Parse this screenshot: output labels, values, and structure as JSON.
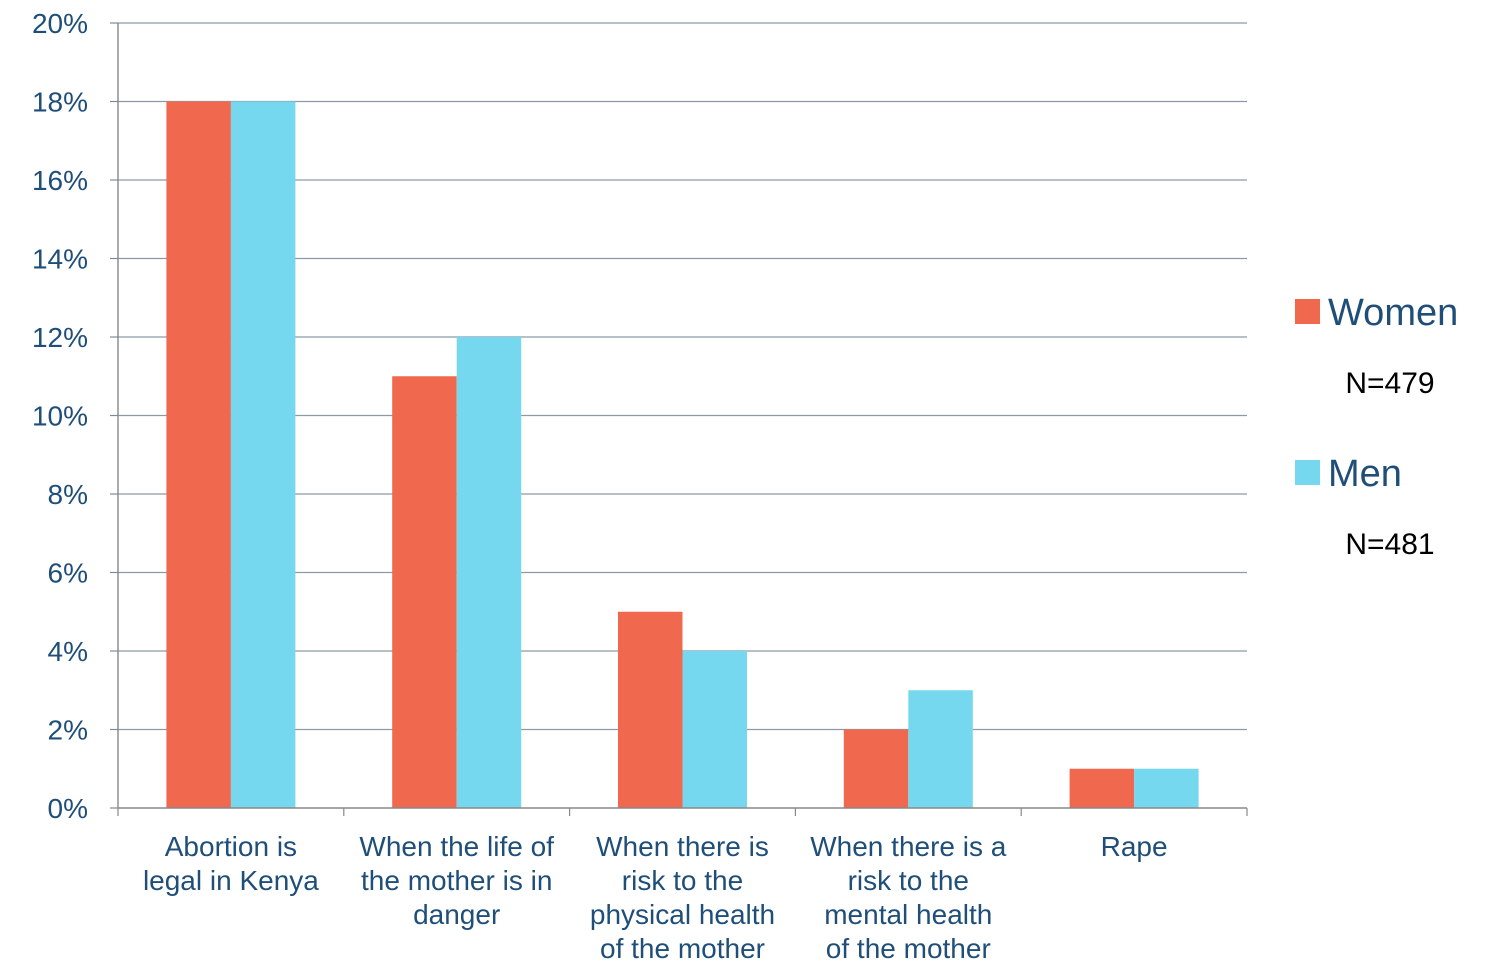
{
  "chart_data": {
    "type": "bar",
    "title": "",
    "xlabel": "",
    "ylabel": "",
    "ylim": [
      0,
      20
    ],
    "y_ticks": [
      "0%",
      "2%",
      "4%",
      "6%",
      "8%",
      "10%",
      "12%",
      "14%",
      "16%",
      "18%",
      "20%"
    ],
    "grid": true,
    "legend_position": "right",
    "categories": [
      [
        "Abortion is",
        "legal in Kenya"
      ],
      [
        "When the life of",
        "the mother is in",
        "danger"
      ],
      [
        "When there is",
        "risk to the",
        "physical health",
        "of the mother"
      ],
      [
        "When there is a",
        "risk to the",
        "mental health",
        "of the mother"
      ],
      [
        "Rape"
      ]
    ],
    "series": [
      {
        "name": "Women",
        "note": "N=479",
        "color": "#f0684d",
        "values": [
          18,
          11,
          5,
          2,
          1
        ]
      },
      {
        "name": "Men",
        "note": "N=481",
        "color": "#76d8ef",
        "values": [
          18,
          12,
          4,
          3,
          1
        ]
      }
    ],
    "colors": {
      "axis": "#888888",
      "grid": "#8a9aa6",
      "text": "#1f4e79"
    }
  }
}
